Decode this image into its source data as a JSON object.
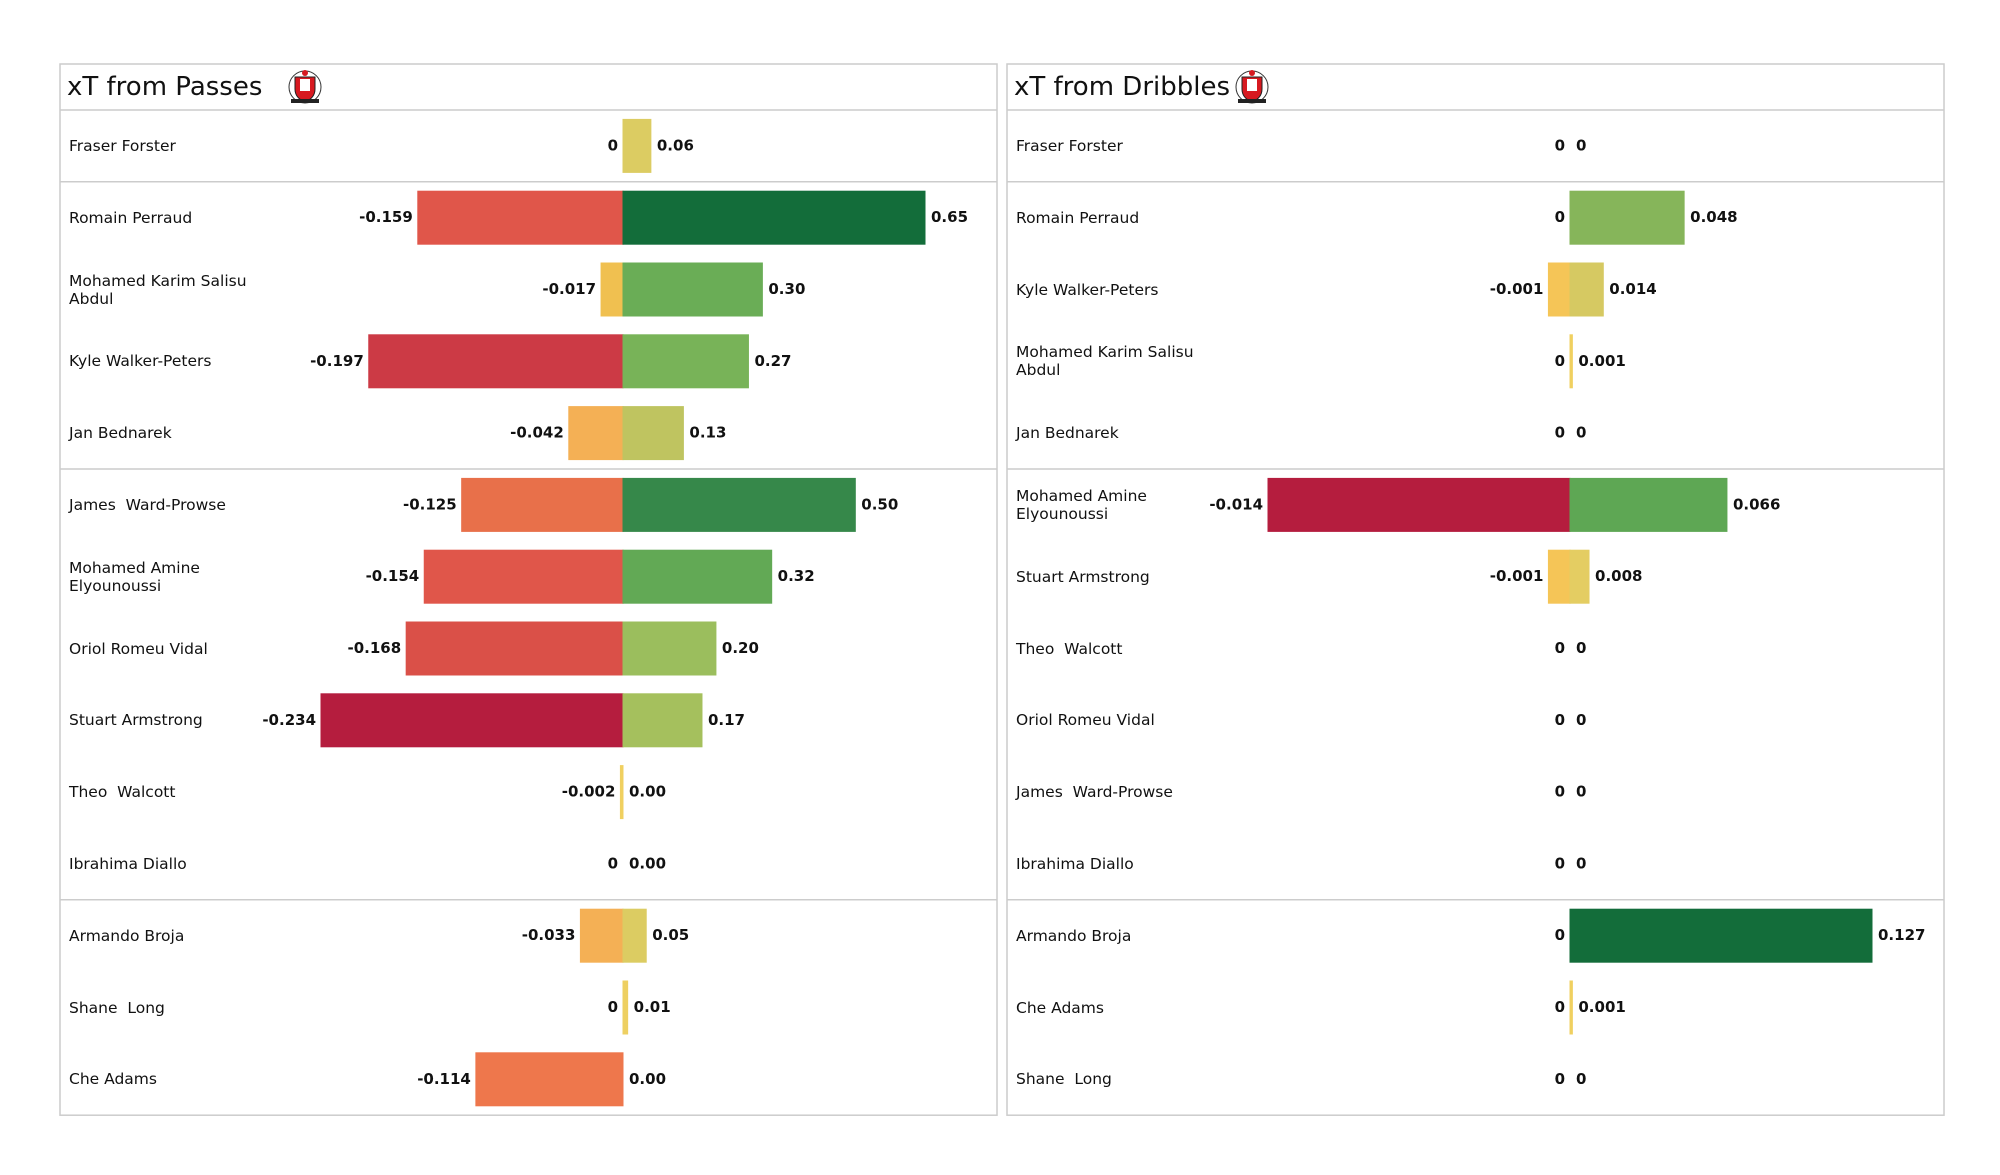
{
  "chart_data": [
    {
      "type": "bar",
      "title": "xT from Passes",
      "categories": [
        "Fraser Forster",
        "Romain Perraud",
        "Mohamed Karim Salisu Abdul",
        "Kyle Walker-Peters",
        "Jan Bednarek",
        "James  Ward-Prowse",
        "Mohamed Amine Elyounoussi",
        "Oriol Romeu Vidal",
        "Stuart Armstrong",
        "Theo  Walcott",
        "Ibrahima Diallo",
        "Armando Broja",
        "Shane  Long",
        "Che Adams"
      ],
      "series": [
        {
          "values": [
            0,
            -0.159,
            -0.017,
            -0.197,
            -0.042,
            -0.125,
            -0.154,
            -0.168,
            -0.234,
            -0.002,
            0,
            -0.033,
            0,
            -0.114
          ],
          "colors": [
            "#f0d060",
            "#e0564a",
            "#f0c050",
            "#cc3a45",
            "#f4b055",
            "#e8704a",
            "#e0564a",
            "#da5048",
            "#b51d3e",
            "#f0d060",
            "#f0d060",
            "#f4b055",
            "#f0d060",
            "#ee774c"
          ]
        },
        {
          "values": [
            0.06,
            0.65,
            0.3,
            0.27,
            0.13,
            0.5,
            0.32,
            0.2,
            0.17,
            0,
            0,
            0.05,
            0.01,
            0
          ],
          "value_labels": [
            "0.06",
            "0.65",
            "0.30",
            "0.27",
            "0.13",
            "0.50",
            "0.32",
            "0.20",
            "0.17",
            "0.00",
            "0.00",
            "0.05",
            "0.01",
            "0.00"
          ],
          "colors": [
            "#dccc62",
            "#136d3a",
            "#6aad56",
            "#78b358",
            "#bfc460",
            "#36884a",
            "#62a955",
            "#9bbe5d",
            "#a5c05d",
            "#f0d060",
            "#f0d060",
            "#dccc62",
            "#eed062",
            "#f0d060"
          ]
        }
      ]
    },
    {
      "type": "bar",
      "title": "xT from Dribbles",
      "categories": [
        "Fraser Forster",
        "Romain Perraud",
        "Kyle Walker-Peters",
        "Mohamed Karim Salisu Abdul",
        "Jan Bednarek",
        "Mohamed Amine Elyounoussi",
        "Stuart Armstrong",
        "Theo  Walcott",
        "Oriol Romeu Vidal",
        "James  Ward-Prowse",
        "Ibrahima Diallo",
        "Armando Broja",
        "Che Adams",
        "Shane  Long"
      ],
      "series": [
        {
          "values": [
            0,
            0,
            -0.001,
            0,
            0,
            -0.014,
            -0.001,
            0,
            0,
            0,
            0,
            0,
            0,
            0
          ],
          "colors": [
            "#f0d060",
            "#f0d060",
            "#f5c557",
            "#f0d060",
            "#f0d060",
            "#b51d3e",
            "#f5c557",
            "#f0d060",
            "#f0d060",
            "#f0d060",
            "#f0d060",
            "#f0d060",
            "#f0d060",
            "#f0d060"
          ]
        },
        {
          "values": [
            0,
            0.048,
            0.014,
            0.001,
            0,
            0.066,
            0.008,
            0,
            0,
            0,
            0,
            0.127,
            0.001,
            0
          ],
          "colors": [
            "#f0d060",
            "#86b55a",
            "#d6c962",
            "#f0d060",
            "#f0d060",
            "#5ea754",
            "#e4cd62",
            "#f0d060",
            "#f0d060",
            "#f0d060",
            "#f0d060",
            "#136d3a",
            "#f0d060",
            "#f0d060"
          ]
        }
      ]
    }
  ]
}
